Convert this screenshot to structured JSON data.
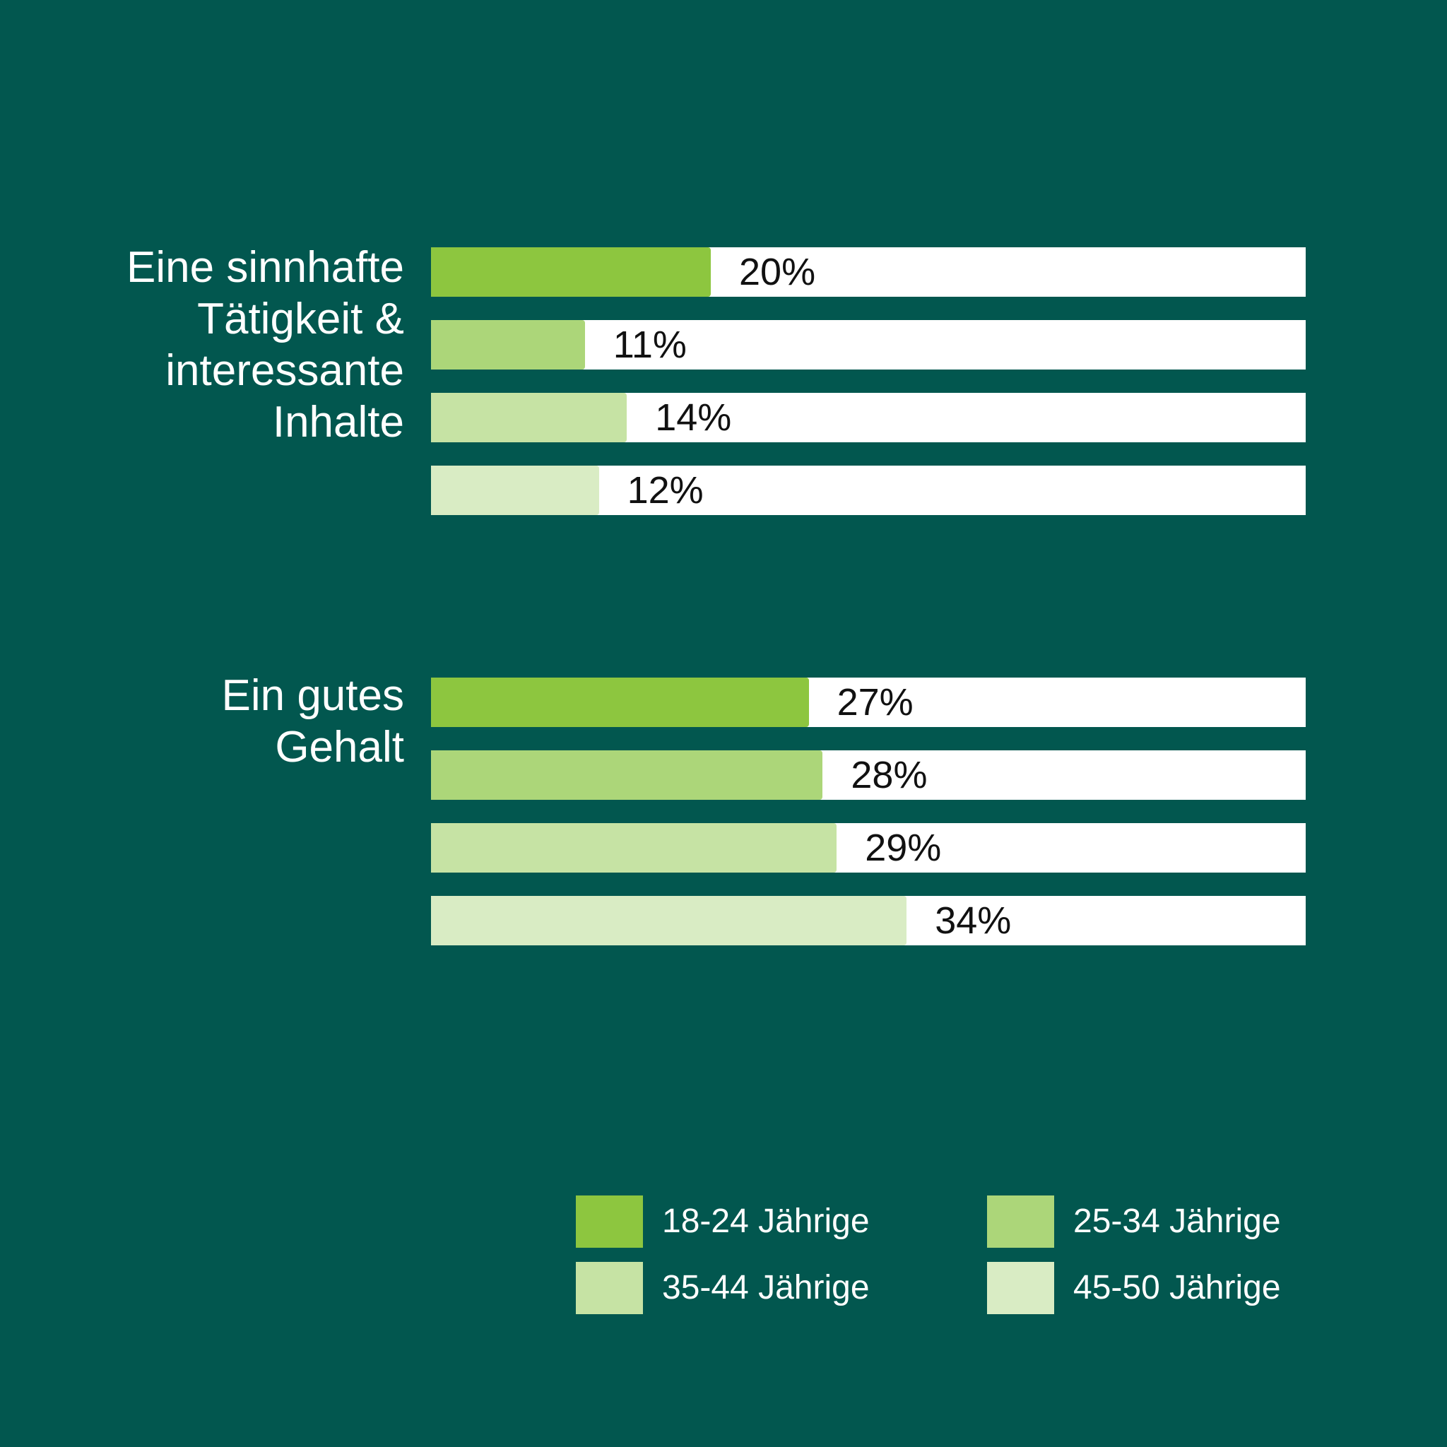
{
  "chart_data": {
    "type": "bar",
    "orientation": "horizontal",
    "categories": [
      "Eine sinnhafte\nTätigkeit &\ninteressante\nInhalte",
      "Ein gutes\nGehalt"
    ],
    "series": [
      {
        "name": "18-24 Jährige",
        "color": "#8dc63f",
        "values": [
          20,
          27
        ],
        "labels": [
          "20%",
          "27%"
        ]
      },
      {
        "name": "25-34 Jährige",
        "color": "#acd679",
        "values": [
          11,
          28
        ],
        "labels": [
          "11%",
          "28%"
        ]
      },
      {
        "name": "35-44 Jährige",
        "color": "#c6e3a4",
        "values": [
          14,
          29
        ],
        "labels": [
          "14%",
          "29%"
        ]
      },
      {
        "name": "45-50 Jährige",
        "color": "#d9ecc4",
        "values": [
          12,
          34
        ],
        "labels": [
          "12%",
          "34%"
        ]
      }
    ],
    "xlim": [
      0,
      100
    ],
    "grid": false,
    "legend": "bottom-right",
    "title": "",
    "xlabel": "",
    "ylabel": ""
  },
  "colors": {
    "background": "#02574f",
    "track": "#ffffff"
  }
}
